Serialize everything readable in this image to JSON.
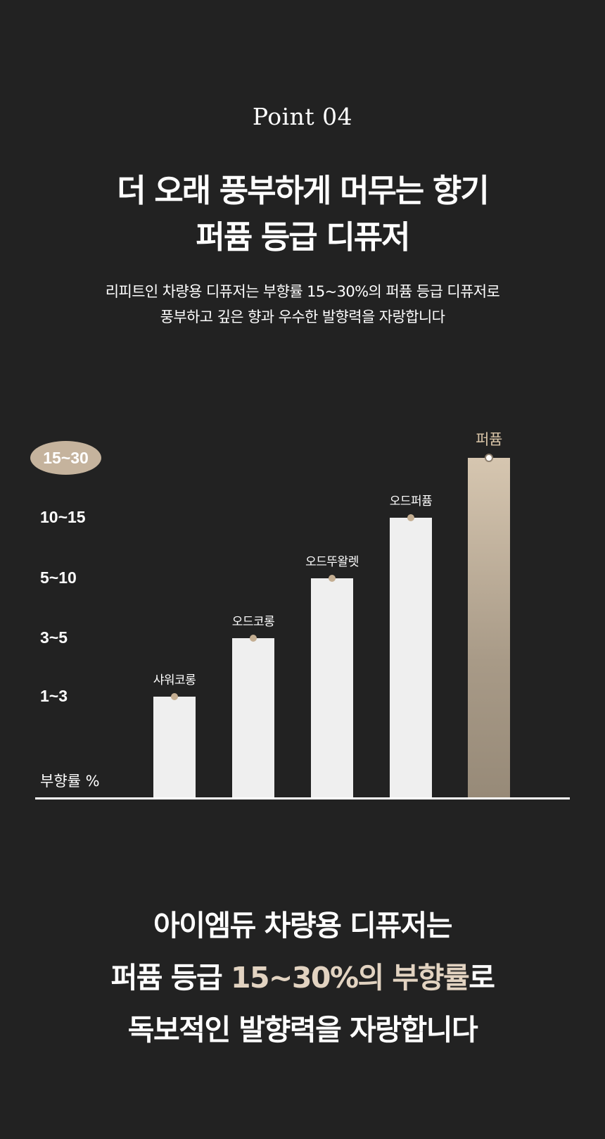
{
  "header": {
    "point_label": "Point 04",
    "headline_line1": "더 오래 풍부하게 머무는 향기",
    "headline_line2": "퍼퓸 등급 디퓨저",
    "desc_line1": "리피트인 차량용 디퓨저는 부향률 15~30%의 퍼퓸 등급 디퓨저로",
    "desc_line2": "풍부하고 깊은 향과 우수한 발향력을 자랑합니다"
  },
  "chart_data": {
    "type": "bar",
    "ylabel": "부향률 %",
    "y_ticks": [
      "1~3",
      "3~5",
      "5~10",
      "10~15",
      "15~30"
    ],
    "highlighted_tick": "15~30",
    "categories": [
      "샤워코롱",
      "오드코롱",
      "오드뚜왈렛",
      "오드퍼퓸",
      "퍼퓸"
    ],
    "values": [
      "1~3",
      "3~5",
      "5~10",
      "10~15",
      "15~30"
    ],
    "highlighted_category": "퍼퓸",
    "colors": {
      "bar": "#efefef",
      "accent": "#c5b39d",
      "marker": "#c4ae92"
    }
  },
  "summary": {
    "line1": "아이엠듀 차량용 디퓨저는",
    "line2_a": "퍼퓸 등급 ",
    "line2_highlight": "15~30%의 부향률",
    "line2_b": "로",
    "line3": "독보적인 발향력을 자랑합니다"
  },
  "colors": {
    "background": "#222222",
    "highlight_text": "#e2d3c1"
  }
}
